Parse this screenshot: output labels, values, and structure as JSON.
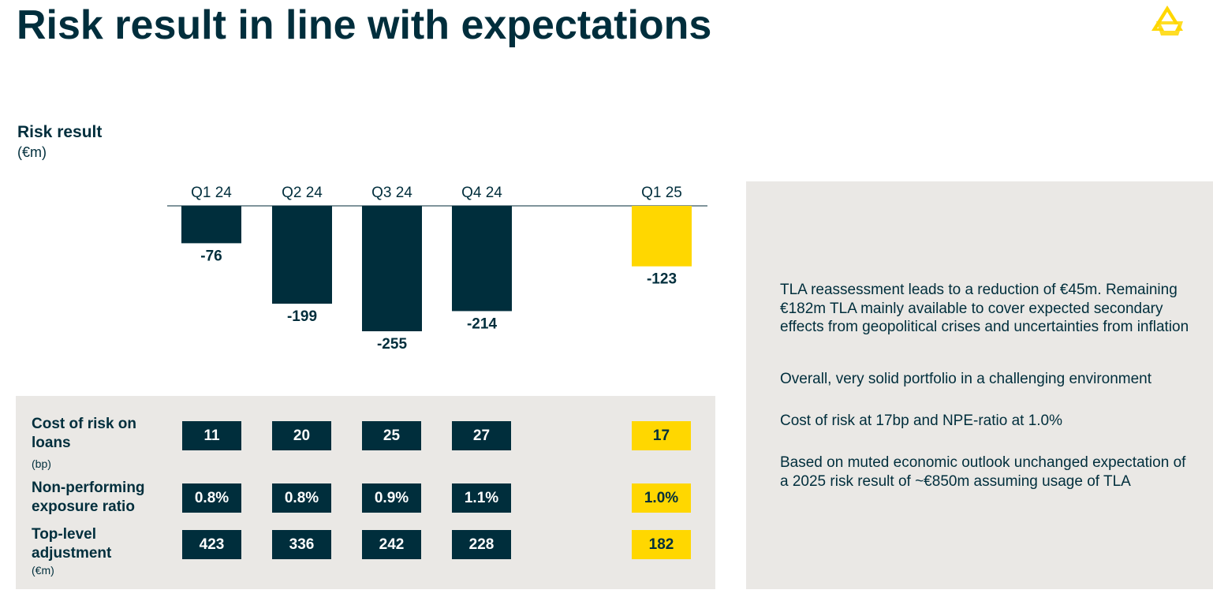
{
  "page": {
    "title": "Risk result in line with expectations",
    "logo_icon": "commerzbank-logo-icon"
  },
  "chart_data": {
    "type": "bar",
    "title": "Risk result",
    "unit": "(€m)",
    "categories": [
      "Q1 24",
      "Q2 24",
      "Q3 24",
      "Q4 24",
      "Q1 25"
    ],
    "values": [
      -76,
      -199,
      -255,
      -214,
      -123
    ],
    "labels": [
      "-76",
      "-199",
      "-255",
      "-214",
      "-123"
    ],
    "highlight_index": 4,
    "colors": {
      "default": "#002e3c",
      "highlight": "#ffd700",
      "baseline": "#56707a"
    }
  },
  "kpis": {
    "rows": [
      {
        "label": "Cost of risk on loans",
        "sub": "(bp)",
        "values": [
          "11",
          "20",
          "25",
          "27",
          "17"
        ]
      },
      {
        "label": "Non-performing exposure ratio",
        "sub": "",
        "values": [
          "0.8%",
          "0.8%",
          "0.9%",
          "1.1%",
          "1.0%"
        ]
      },
      {
        "label": "Top-level adjustment",
        "sub": "(€m)",
        "values": [
          "423",
          "336",
          "242",
          "228",
          "182"
        ]
      }
    ]
  },
  "bullets": [
    "TLA reassessment leads to a reduction of €45m. Remaining €182m TLA mainly available to cover expected secondary effects from geopolitical crises and uncertainties from inflation",
    "Overall, very solid portfolio in a challenging environment",
    "Cost of risk at 17bp and NPE-ratio at 1.0%",
    "Based on muted economic outlook unchanged expectation of a 2025 risk result of ~€850m assuming usage of TLA"
  ],
  "colors": {
    "navy": "#002e3c",
    "yellow": "#ffd700",
    "panel": "#eae8e5"
  }
}
